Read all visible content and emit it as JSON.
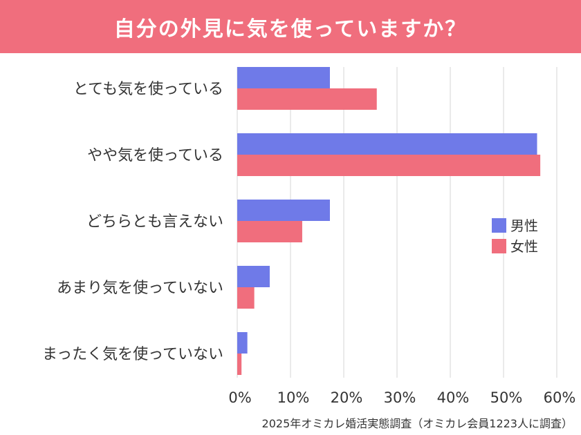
{
  "title": "自分の外見に気を使っていますか？",
  "footnote": "2025年オミカレ婚活実態調査（オミカレ会員1223人に調査）",
  "colors": {
    "header": "#f06e7d",
    "male": "#6f7ae8",
    "female": "#f06e7d",
    "grid": "#d4d4d4"
  },
  "chart_data": {
    "type": "bar",
    "orientation": "horizontal",
    "title": "自分の外見に気を使っていますか？",
    "categories": [
      "とても気を使っている",
      "やや気を使っている",
      "どちらとも言えない",
      "あまり気を使っていない",
      "まったく気を使っていない"
    ],
    "series": [
      {
        "name": "男性",
        "color": "#6f7ae8",
        "values": [
          17.4,
          56.3,
          17.4,
          6.1,
          1.9
        ]
      },
      {
        "name": "女性",
        "color": "#f06e7d",
        "values": [
          26.2,
          56.9,
          12.2,
          3.2,
          0.8
        ]
      }
    ],
    "xlim": [
      0,
      60
    ],
    "xticks": [
      "0%",
      "10%",
      "20%",
      "30%",
      "40%",
      "50%",
      "60%"
    ],
    "legend_position": "right"
  }
}
